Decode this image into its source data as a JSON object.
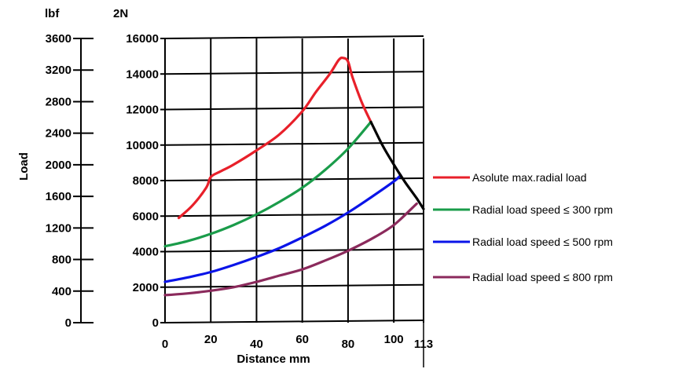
{
  "chart_data": {
    "type": "line",
    "title": "",
    "xlabel": "Distance mm",
    "ylabel": "Load",
    "left_axis_unit": "lbf",
    "right_axis_unit": "2N",
    "xlim": [
      0,
      113
    ],
    "ylim": [
      0,
      16000
    ],
    "ylim_lbf": [
      0,
      3600
    ],
    "x_ticks": [
      "0",
      "20",
      "40",
      "60",
      "80",
      "100",
      "113"
    ],
    "x_tick_values": [
      0,
      20,
      40,
      60,
      80,
      100,
      113
    ],
    "y_ticks": [
      "0",
      "2000",
      "4000",
      "6000",
      "8000",
      "10000",
      "12000",
      "14000",
      "16000"
    ],
    "y_tick_values": [
      0,
      2000,
      4000,
      6000,
      8000,
      10000,
      12000,
      14000,
      16000
    ],
    "lbf_ticks": [
      "0",
      "400",
      "800",
      "1200",
      "1600",
      "2000",
      "2400",
      "2800",
      "3200",
      "3600"
    ],
    "lbf_tick_values": [
      0,
      400,
      800,
      1200,
      1600,
      2000,
      2400,
      2800,
      3200,
      3600
    ],
    "grid": true,
    "legend_position": "right",
    "series": [
      {
        "name": "Asolute max.radial load",
        "color": "#e8202a",
        "x": [
          6,
          12,
          18,
          20,
          24,
          30,
          40,
          50,
          60,
          66,
          72,
          76,
          78,
          80,
          82,
          86,
          90
        ],
        "y": [
          5900,
          6600,
          7600,
          8200,
          8500,
          8900,
          9700,
          10600,
          11900,
          13000,
          14000,
          14800,
          14900,
          14700,
          13800,
          12400,
          11300
        ]
      },
      {
        "name": "Radial load speed ≤ 300 rpm",
        "color": "#1a9c4a",
        "x": [
          0,
          10,
          20,
          30,
          40,
          50,
          60,
          70,
          80,
          90
        ],
        "y": [
          4300,
          4600,
          5000,
          5500,
          6100,
          6800,
          7600,
          8600,
          9800,
          11300
        ]
      },
      {
        "name": "Radial load speed ≤ 500 rpm",
        "color": "#0a14e8",
        "x": [
          0,
          10,
          20,
          30,
          40,
          50,
          60,
          70,
          80,
          90,
          100,
          103
        ],
        "y": [
          2300,
          2550,
          2850,
          3250,
          3700,
          4200,
          4800,
          5450,
          6200,
          7050,
          7950,
          8300
        ]
      },
      {
        "name": "Radial load speed ≤ 800 rpm",
        "color": "#8b2a5c",
        "x": [
          0,
          10,
          20,
          30,
          40,
          50,
          60,
          70,
          80,
          90,
          100,
          110
        ],
        "y": [
          1550,
          1650,
          1800,
          2000,
          2300,
          2650,
          3000,
          3500,
          4050,
          4700,
          5500,
          6700
        ]
      },
      {
        "name": "",
        "color": "#000000",
        "x": [
          90,
          95,
          100,
          105,
          110,
          113
        ],
        "y": [
          11300,
          10000,
          8900,
          7900,
          7000,
          6400
        ]
      }
    ]
  }
}
